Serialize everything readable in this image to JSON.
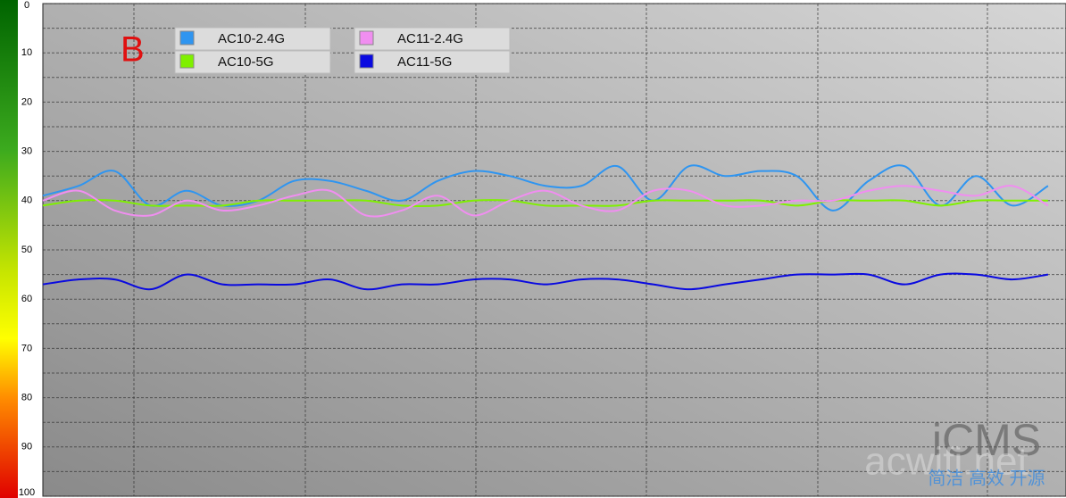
{
  "chart_data": {
    "type": "line",
    "annotation": "B",
    "watermark": [
      "iCMS",
      "acwifi.net",
      "简洁 高效 开源"
    ],
    "x": [
      0,
      2,
      4,
      6,
      8,
      10,
      12,
      14,
      16,
      18,
      20,
      22,
      24,
      26,
      28,
      30,
      32,
      34,
      36,
      38,
      40,
      42,
      44,
      46,
      48,
      50,
      52,
      54,
      56
    ],
    "xlim": [
      0,
      57
    ],
    "ylim": [
      100,
      0
    ],
    "yticks": [
      0,
      10,
      20,
      30,
      40,
      50,
      60,
      70,
      80,
      90,
      100
    ],
    "grid": true,
    "series": [
      {
        "name": "AC10-2.4G",
        "color": "#2f95f0",
        "values": [
          39,
          37,
          34,
          41,
          38,
          41,
          40,
          36,
          36,
          38,
          40,
          36,
          34,
          35,
          37,
          37,
          33,
          40,
          33,
          35,
          34,
          35,
          42,
          36,
          33,
          41,
          35,
          41,
          37
        ]
      },
      {
        "name": "AC10-5G",
        "color": "#7ff000",
        "values": [
          41,
          40,
          40,
          41,
          41,
          41,
          40,
          40,
          40,
          40,
          41,
          41,
          40,
          40,
          41,
          41,
          41,
          40,
          40,
          40,
          40,
          41,
          40,
          40,
          40,
          41,
          40,
          40,
          40
        ]
      },
      {
        "name": "AC11-2.4G",
        "color": "#f08ef0",
        "values": [
          40,
          38,
          42,
          43,
          40,
          42,
          41,
          39,
          38,
          43,
          42,
          39,
          43,
          40,
          38,
          41,
          42,
          38,
          38,
          41,
          41,
          40,
          40,
          38,
          37,
          38,
          39,
          37,
          41
        ]
      },
      {
        "name": "AC11-5G",
        "color": "#0a0ae0",
        "values": [
          57,
          56,
          56,
          58,
          55,
          57,
          57,
          57,
          56,
          58,
          57,
          57,
          56,
          56,
          57,
          56,
          56,
          57,
          58,
          57,
          56,
          55,
          55,
          55,
          57,
          55,
          55,
          56,
          55
        ]
      }
    ]
  }
}
